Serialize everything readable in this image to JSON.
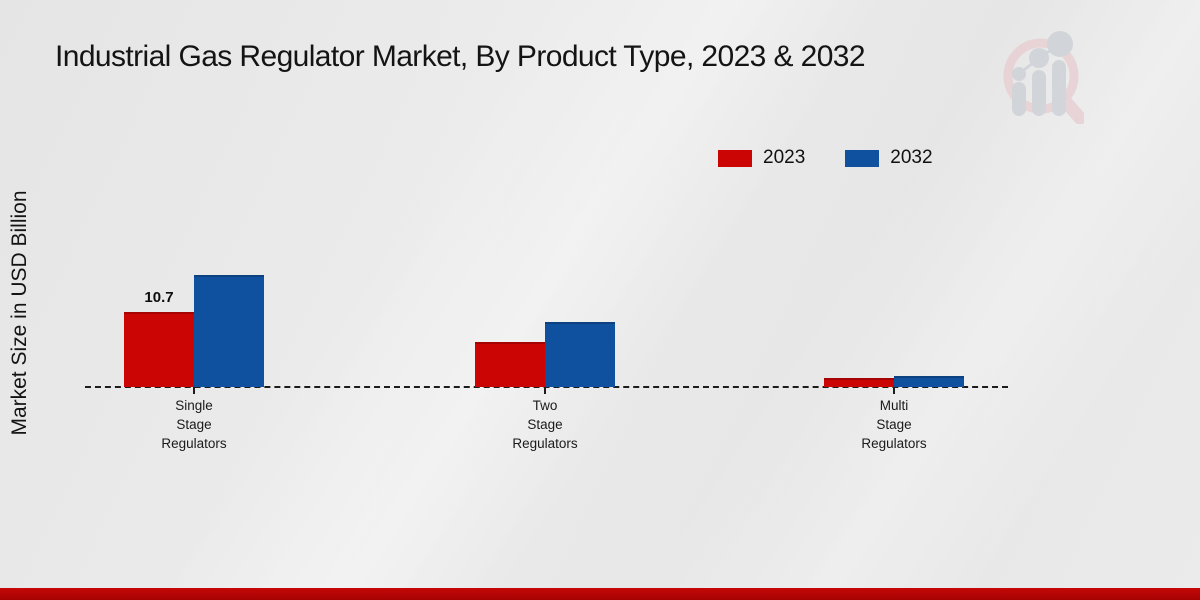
{
  "title": "Industrial Gas Regulator Market, By Product Type, 2023 & 2032",
  "y_axis_label": "Market Size in USD Billion",
  "colors": {
    "series_2023": "#cb0404",
    "series_2032": "#0f519e",
    "bottom_band": "#b80505",
    "baseline": "#1c1c1c",
    "background": "#e9e9e9",
    "logo_ring": "#e8ced1",
    "logo_bars": "#ccd0d5"
  },
  "legend": {
    "position": "top-right",
    "items": [
      {
        "label": "2023",
        "color": "#cb0404"
      },
      {
        "label": "2032",
        "color": "#0f519e"
      }
    ]
  },
  "chart_data": {
    "type": "bar",
    "title": "Industrial Gas Regulator Market, By Product Type, 2023 & 2032",
    "xlabel": "",
    "ylabel": "Market Size in USD Billion",
    "categories": [
      "Single Stage Regulators",
      "Two Stage Regulators",
      "Multi Stage Regulators"
    ],
    "series": [
      {
        "name": "2023",
        "color": "#cb0404",
        "values": [
          10.7,
          6.4,
          1.3
        ]
      },
      {
        "name": "2032",
        "color": "#0f519e",
        "values": [
          16.0,
          9.3,
          1.6
        ]
      }
    ],
    "annotations": [
      {
        "series_index": 0,
        "category_index": 0,
        "text": "10.7"
      }
    ],
    "grid": false,
    "legend_position": "top-right",
    "baseline_style": "dashed",
    "ylim": [
      0,
      18
    ]
  },
  "branding": {
    "logo_name": "magnifier-growth-chart-logo"
  }
}
